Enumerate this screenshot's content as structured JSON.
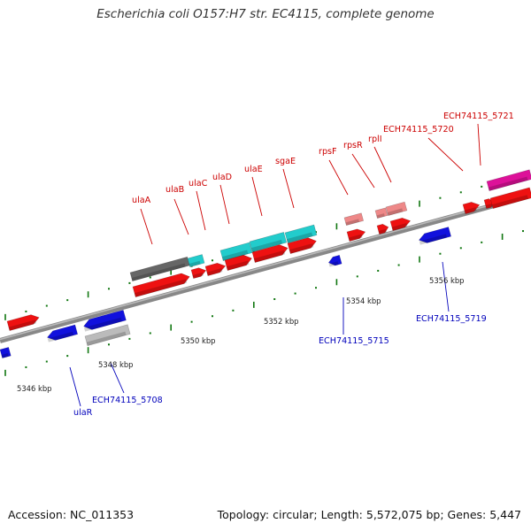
{
  "title": "Escherichia coli O157:H7 str. EC4115, complete genome",
  "footer": {
    "accession": "Accession: NC_011353",
    "summary": "Topology: circular; Length: 5,572,075 bp; Genes: 5,447"
  },
  "colors": {
    "forward_gene": "#ee1111",
    "reverse_gene": "#1111dd",
    "cyan_gene": "#22cccc",
    "gray_gene": "#666666",
    "light_gray_gene": "#bbbbbb",
    "pink_gene": "#ee8888",
    "magenta_gene": "#dd1199",
    "label_forward": "#cc0000",
    "label_reverse": "#0000bb",
    "tick": "#117711",
    "backbone": "#888888"
  },
  "scale_labels": [
    "5346 kbp",
    "5348 kbp",
    "5350 kbp",
    "5352 kbp",
    "5354 kbp",
    "5356 kbp"
  ],
  "forward_labels": [
    "ulaA",
    "ulaB",
    "ulaC",
    "ulaD",
    "ulaE",
    "sgaE",
    "rpsF",
    "rpsR",
    "rplI",
    "ECH74115_5720",
    "ECH74115_5721"
  ],
  "reverse_labels": [
    "ulaR",
    "ECH74115_5708",
    "ECH74115_5715",
    "ECH74115_5719"
  ]
}
